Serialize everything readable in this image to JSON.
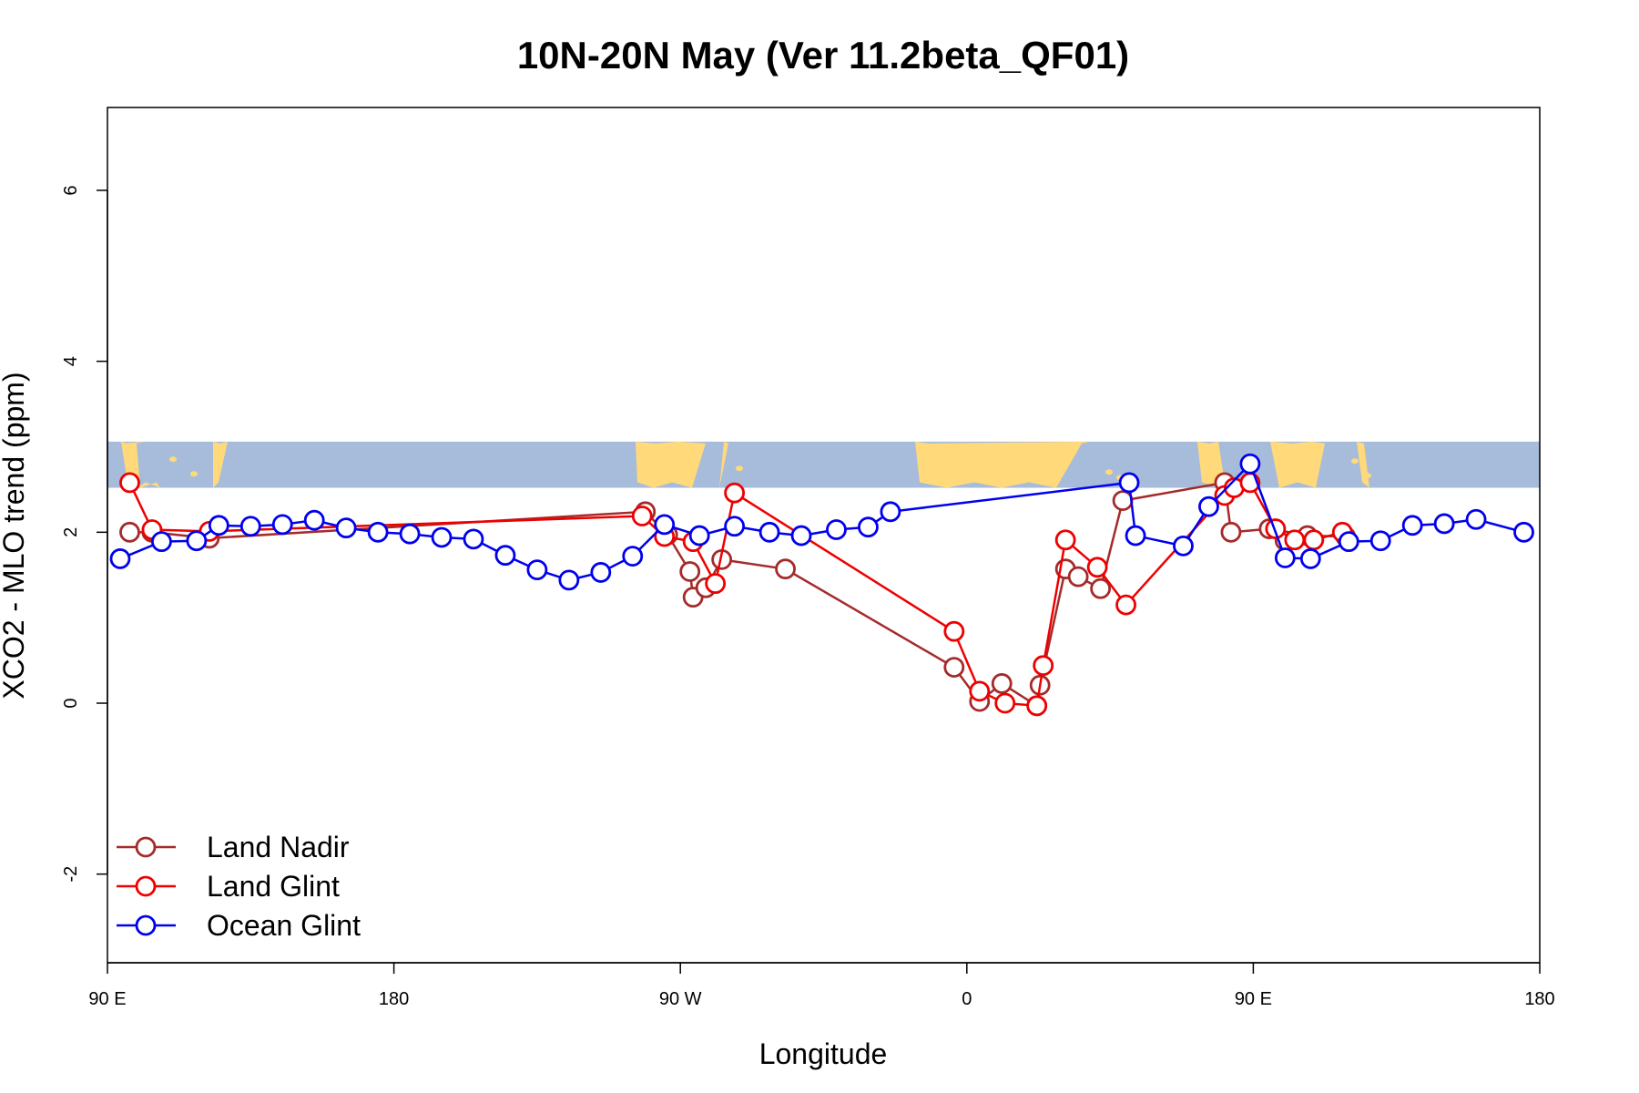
{
  "chart_data": {
    "type": "line",
    "title": "10N-20N May (Ver 11.2beta_QF01)",
    "xlabel": "Longitude",
    "ylabel": "XCO2 - MLO trend (ppm)",
    "xlim": [
      90,
      540
    ],
    "ylim": [
      -3,
      7
    ],
    "x_ticks": [
      {
        "value": 90,
        "label": "90 E"
      },
      {
        "value": 180,
        "label": "180"
      },
      {
        "value": 270,
        "label": "90 W"
      },
      {
        "value": 360,
        "label": "0"
      },
      {
        "value": 450,
        "label": "90 E"
      },
      {
        "value": 540,
        "label": "180"
      }
    ],
    "y_ticks": [
      {
        "value": -2,
        "label": "-2"
      },
      {
        "value": 0,
        "label": "0"
      },
      {
        "value": 2,
        "label": "2"
      },
      {
        "value": 4,
        "label": "4"
      },
      {
        "value": 6,
        "label": "6"
      }
    ],
    "map_band": {
      "y_range": [
        2.52,
        3.06
      ],
      "ocean_color": "#a7bcdb",
      "land_color": "#ffd97a"
    },
    "legend": {
      "placement": "bottom-left"
    },
    "series": [
      {
        "name": "Land Nadir",
        "color": "#a52a2a",
        "x": [
          97,
          104,
          122,
          259,
          266,
          273,
          274,
          278,
          283,
          303,
          356,
          364,
          371,
          382,
          383,
          391,
          395,
          402,
          409,
          441,
          443,
          455,
          460,
          467,
          479
        ],
        "y": [
          2.0,
          2.0,
          1.93,
          2.24,
          1.97,
          1.54,
          1.24,
          1.35,
          1.68,
          1.57,
          0.42,
          0.02,
          0.23,
          -0.03,
          0.21,
          1.57,
          1.48,
          1.34,
          2.37,
          2.58,
          2.0,
          2.04,
          1.9,
          1.96,
          1.95
        ]
      },
      {
        "name": "Land Glint",
        "color": "#ee0000",
        "x": [
          97,
          104,
          122,
          258,
          265,
          274,
          281,
          287,
          356,
          364,
          372,
          382,
          384,
          391,
          401,
          410,
          441,
          444,
          449,
          457,
          463,
          469,
          478
        ],
        "y": [
          2.58,
          2.03,
          2.01,
          2.19,
          1.95,
          1.89,
          1.4,
          2.46,
          0.84,
          0.14,
          0.0,
          -0.03,
          0.44,
          1.91,
          1.59,
          1.15,
          2.43,
          2.52,
          2.58,
          2.04,
          1.91,
          1.91,
          2.0
        ]
      },
      {
        "name": "Ocean Glint",
        "color": "#0000ee",
        "x": [
          94,
          107,
          118,
          125,
          135,
          145,
          155,
          165,
          175,
          185,
          195,
          205,
          215,
          225,
          235,
          245,
          255,
          265,
          276,
          287,
          298,
          308,
          319,
          329,
          336,
          411,
          413,
          428,
          436,
          449,
          460,
          468,
          480,
          490,
          500,
          510,
          520,
          535
        ],
        "y": [
          1.69,
          1.89,
          1.9,
          2.08,
          2.07,
          2.09,
          2.14,
          2.05,
          2.0,
          1.98,
          1.94,
          1.92,
          1.73,
          1.56,
          1.44,
          1.53,
          1.72,
          2.09,
          1.96,
          2.07,
          2.0,
          1.96,
          2.03,
          2.06,
          2.24,
          2.58,
          1.96,
          1.84,
          2.3,
          2.8,
          1.7,
          1.69,
          1.89,
          1.9,
          2.08,
          2.1,
          2.15,
          2.0
        ]
      }
    ]
  }
}
